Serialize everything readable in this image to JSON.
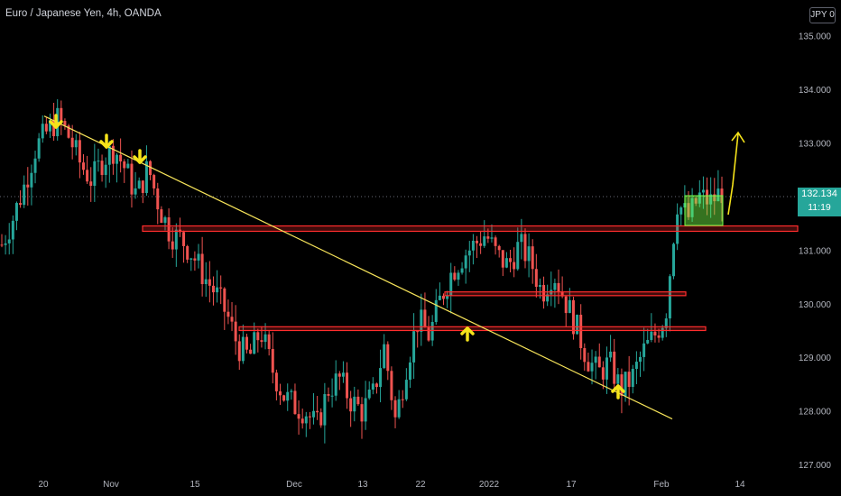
{
  "header": {
    "title": "Euro / Japanese Yen, 4h, OANDA",
    "currency_badge": "JPY 0"
  },
  "last_price": {
    "value": "132.134",
    "countdown": "11:19"
  },
  "colors": {
    "up": "#26a69a",
    "down": "#ef5350",
    "trendline": "#f7e45a",
    "arrow": "#f5e31a",
    "zone_fill": "#ff2d2d",
    "box": "#76ff46",
    "last_price_tag": "#26a69a"
  },
  "chart_data": {
    "type": "candlestick",
    "title": "Euro / Japanese Yen, 4h, OANDA",
    "ylim": [
      126.75,
      136.0
    ],
    "y_ticks": [
      "127.000",
      "128.000",
      "129.000",
      "130.000",
      "131.000",
      "132.000",
      "133.000",
      "134.000",
      "135.000"
    ],
    "x_ticks": [
      "20",
      "Nov",
      "15",
      "Dec",
      "13",
      "22",
      "2022",
      "17",
      "Feb",
      "14"
    ],
    "trend": [
      {
        "x": "20",
        "close": 131.1
      },
      {
        "x": "20",
        "close": 131.6
      },
      {
        "x": "20",
        "close": 132.2
      },
      {
        "x": "20",
        "close": 132.9
      },
      {
        "x": "20",
        "close": 133.2
      },
      {
        "x": "20",
        "close": 133.45
      },
      {
        "x": "20",
        "close": 133.1
      },
      {
        "x": "20",
        "close": 132.6
      },
      {
        "x": "Nov",
        "close": 132.3
      },
      {
        "x": "Nov",
        "close": 132.7
      },
      {
        "x": "Nov",
        "close": 132.9
      },
      {
        "x": "Nov",
        "close": 132.5
      },
      {
        "x": "Nov",
        "close": 132.0
      },
      {
        "x": "Nov",
        "close": 132.55
      },
      {
        "x": "Nov",
        "close": 131.8
      },
      {
        "x": "Nov",
        "close": 131.3
      },
      {
        "x": "Nov",
        "close": 131.2
      },
      {
        "x": "15",
        "close": 130.9
      },
      {
        "x": "15",
        "close": 130.5
      },
      {
        "x": "15",
        "close": 130.2
      },
      {
        "x": "15",
        "close": 129.8
      },
      {
        "x": "15",
        "close": 129.2
      },
      {
        "x": "15",
        "close": 129.0
      },
      {
        "x": "15",
        "close": 129.5
      },
      {
        "x": "15",
        "close": 128.8
      },
      {
        "x": "15",
        "close": 128.3
      },
      {
        "x": "Dec",
        "close": 128.1
      },
      {
        "x": "Dec",
        "close": 128.0
      },
      {
        "x": "Dec",
        "close": 127.7
      },
      {
        "x": "Dec",
        "close": 128.4
      },
      {
        "x": "13",
        "close": 128.6
      },
      {
        "x": "13",
        "close": 128.2
      },
      {
        "x": "13",
        "close": 128.0
      },
      {
        "x": "13",
        "close": 128.3
      },
      {
        "x": "22",
        "close": 129.2
      },
      {
        "x": "22",
        "close": 127.8
      },
      {
        "x": "22",
        "close": 128.9
      },
      {
        "x": "22",
        "close": 129.7
      },
      {
        "x": "22",
        "close": 129.4
      },
      {
        "x": "22",
        "close": 130.1
      },
      {
        "x": "2022",
        "close": 130.6
      },
      {
        "x": "2022",
        "close": 130.9
      },
      {
        "x": "2022",
        "close": 131.1
      },
      {
        "x": "2022",
        "close": 131.3
      },
      {
        "x": "2022",
        "close": 130.9
      },
      {
        "x": "2022",
        "close": 130.7
      },
      {
        "x": "2022",
        "close": 131.1
      },
      {
        "x": "17",
        "close": 130.8
      },
      {
        "x": "17",
        "close": 130.2
      },
      {
        "x": "17",
        "close": 130.6
      },
      {
        "x": "17",
        "close": 130.1
      },
      {
        "x": "17",
        "close": 129.6
      },
      {
        "x": "17",
        "close": 129.0
      },
      {
        "x": "17",
        "close": 128.7
      },
      {
        "x": "17",
        "close": 128.9
      },
      {
        "x": "17",
        "close": 128.4
      },
      {
        "x": "Feb",
        "close": 128.6
      },
      {
        "x": "Feb",
        "close": 129.1
      },
      {
        "x": "Feb",
        "close": 129.4
      },
      {
        "x": "Feb",
        "close": 129.8
      },
      {
        "x": "Feb",
        "close": 131.9
      },
      {
        "x": "Feb",
        "close": 131.6
      },
      {
        "x": "Feb",
        "close": 132.0
      },
      {
        "x": "Feb",
        "close": 131.9
      },
      {
        "x": "Feb",
        "close": 132.1
      }
    ],
    "support_resistance_zones": [
      {
        "low": 131.35,
        "high": 131.45
      },
      {
        "low": 130.15,
        "high": 130.22
      },
      {
        "low": 129.5,
        "high": 129.57
      }
    ],
    "trendline": [
      {
        "x": "20",
        "y": 133.5
      },
      {
        "x": "Feb",
        "y": 127.85
      }
    ],
    "grid": false,
    "legend": "none"
  }
}
